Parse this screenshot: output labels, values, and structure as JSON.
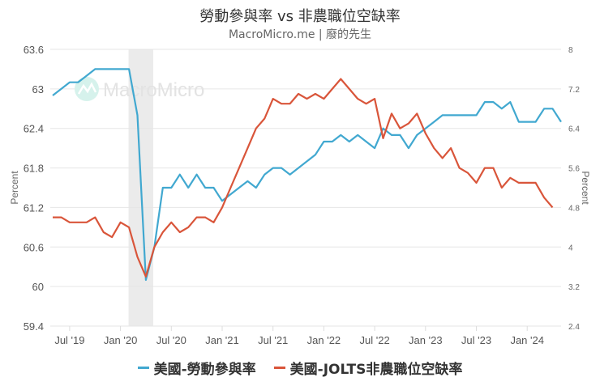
{
  "header": {
    "title": "勞動參與率 vs 非農職位空缺率",
    "subtitle": "MacroMicro.me | 廢的先生"
  },
  "watermark": "MacroMicro",
  "colors": {
    "series_lfpr": "#41a8d0",
    "series_jolts": "#d9553a",
    "grid": "#e6e6e6",
    "recession_band": "#ebebeb"
  },
  "legend": [
    {
      "label": "美國-勞動參與率",
      "color": "#41a8d0"
    },
    {
      "label": "美國-JOLTS非農職位空缺率",
      "color": "#d9553a"
    }
  ],
  "chart_data": {
    "type": "line",
    "title": "勞動參與率 vs 非農職位空缺率",
    "subtitle": "MacroMicro.me | 廢的先生",
    "xlabel": "",
    "ylabel": "Percent",
    "ylabel_right": "Percent",
    "ylim": [
      59.4,
      63.6
    ],
    "ylim_right": [
      2.4,
      8
    ],
    "y_ticks": [
      "63.6",
      "63",
      "62.4",
      "61.8",
      "61.2",
      "60.6",
      "60",
      "59.4"
    ],
    "y_ticks_right": [
      "8",
      "7.2",
      "6.4",
      "5.6",
      "4.8",
      "4",
      "3.2",
      "2.4"
    ],
    "x_ticks": [
      "Jul '19",
      "Jan '20",
      "Jul '20",
      "Jan '21",
      "Jul '21",
      "Jan '22",
      "Jul '22",
      "Jan '23",
      "Jul '23",
      "Jan '24"
    ],
    "grid": true,
    "legend_position": "bottom",
    "shaded_region": {
      "from": "2020-02",
      "to": "2020-04"
    },
    "x": [
      "2019-05",
      "2019-06",
      "2019-07",
      "2019-08",
      "2019-09",
      "2019-10",
      "2019-11",
      "2019-12",
      "2020-01",
      "2020-02",
      "2020-03",
      "2020-04",
      "2020-05",
      "2020-06",
      "2020-07",
      "2020-08",
      "2020-09",
      "2020-10",
      "2020-11",
      "2020-12",
      "2021-01",
      "2021-02",
      "2021-03",
      "2021-04",
      "2021-05",
      "2021-06",
      "2021-07",
      "2021-08",
      "2021-09",
      "2021-10",
      "2021-11",
      "2021-12",
      "2022-01",
      "2022-02",
      "2022-03",
      "2022-04",
      "2022-05",
      "2022-06",
      "2022-07",
      "2022-08",
      "2022-09",
      "2022-10",
      "2022-11",
      "2022-12",
      "2023-01",
      "2023-02",
      "2023-03",
      "2023-04",
      "2023-05",
      "2023-06",
      "2023-07",
      "2023-08",
      "2023-09",
      "2023-10",
      "2023-11",
      "2023-12",
      "2024-01",
      "2024-02",
      "2024-03",
      "2024-04",
      "2024-05"
    ],
    "series": [
      {
        "name": "美國-勞動參與率",
        "axis": "left",
        "color": "#41a8d0",
        "values": [
          62.9,
          63.0,
          63.1,
          63.1,
          63.2,
          63.3,
          63.3,
          63.3,
          63.3,
          63.3,
          62.6,
          60.1,
          60.6,
          61.5,
          61.5,
          61.7,
          61.5,
          61.7,
          61.5,
          61.5,
          61.3,
          61.4,
          61.5,
          61.6,
          61.5,
          61.7,
          61.8,
          61.8,
          61.7,
          61.8,
          61.9,
          62.0,
          62.2,
          62.2,
          62.3,
          62.2,
          62.3,
          62.2,
          62.1,
          62.4,
          62.3,
          62.3,
          62.1,
          62.3,
          62.4,
          62.5,
          62.6,
          62.6,
          62.6,
          62.6,
          62.6,
          62.8,
          62.8,
          62.7,
          62.8,
          62.5,
          62.5,
          62.5,
          62.7,
          62.7,
          62.5
        ]
      },
      {
        "name": "美國-JOLTS非農職位空缺率",
        "axis": "right",
        "color": "#d9553a",
        "values": [
          4.6,
          4.6,
          4.5,
          4.5,
          4.5,
          4.6,
          4.3,
          4.2,
          4.5,
          4.4,
          3.8,
          3.4,
          4.0,
          4.3,
          4.5,
          4.3,
          4.4,
          4.6,
          4.6,
          4.5,
          4.8,
          5.2,
          5.6,
          6.0,
          6.4,
          6.6,
          7.0,
          6.9,
          6.9,
          7.1,
          7.0,
          7.1,
          7.0,
          7.2,
          7.4,
          7.2,
          7.0,
          6.9,
          7.0,
          6.2,
          6.7,
          6.4,
          6.5,
          6.7,
          6.3,
          6.0,
          5.8,
          6.0,
          5.6,
          5.5,
          5.3,
          5.6,
          5.6,
          5.2,
          5.4,
          5.3,
          5.3,
          5.3,
          5.0,
          4.8,
          null
        ]
      }
    ]
  }
}
